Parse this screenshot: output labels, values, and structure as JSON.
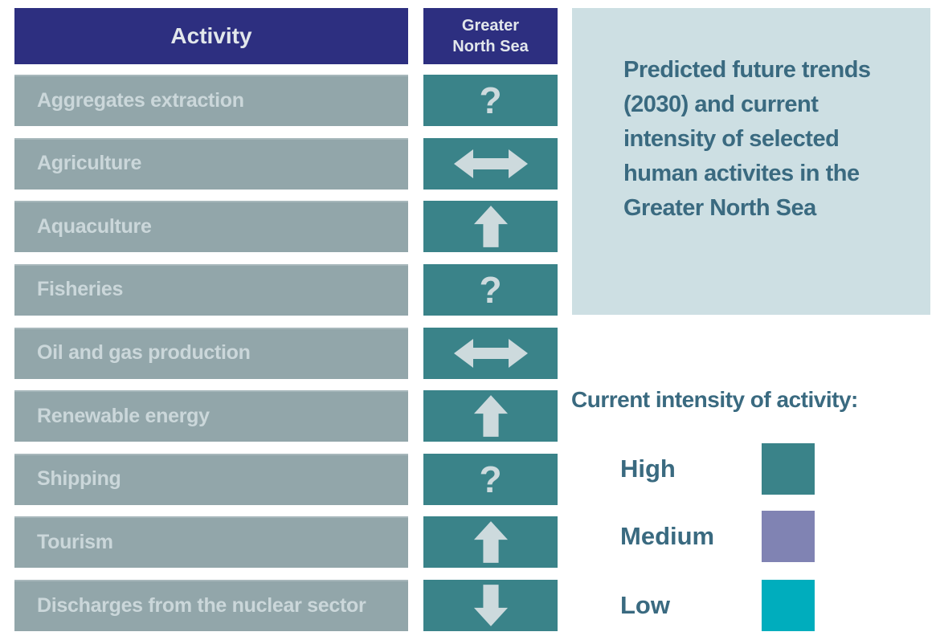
{
  "chart_data": {
    "type": "table",
    "title": "Predicted future trends (2030) and current intensity of selected human activites in the Greater North Sea",
    "columns": [
      "Activity",
      "Greater North Sea"
    ],
    "rows": [
      {
        "activity": "Aggregates extraction",
        "trend_2030": "uncertain",
        "symbol": "?",
        "current_intensity": "High"
      },
      {
        "activity": "Agriculture",
        "trend_2030": "stable",
        "symbol": "left-right-arrow",
        "current_intensity": "High"
      },
      {
        "activity": "Aquaculture",
        "trend_2030": "increase",
        "symbol": "up-arrow",
        "current_intensity": "High"
      },
      {
        "activity": "Fisheries",
        "trend_2030": "uncertain",
        "symbol": "?",
        "current_intensity": "High"
      },
      {
        "activity": "Oil and gas production",
        "trend_2030": "stable",
        "symbol": "left-right-arrow",
        "current_intensity": "High"
      },
      {
        "activity": "Renewable energy",
        "trend_2030": "increase",
        "symbol": "up-arrow",
        "current_intensity": "High"
      },
      {
        "activity": "Shipping",
        "trend_2030": "uncertain",
        "symbol": "?",
        "current_intensity": "High"
      },
      {
        "activity": "Tourism",
        "trend_2030": "increase",
        "symbol": "up-arrow",
        "current_intensity": "High"
      },
      {
        "activity": "Discharges from the nuclear sector",
        "trend_2030": "decrease",
        "symbol": "down-arrow",
        "current_intensity": "High"
      }
    ],
    "legend": {
      "heading": "Current intensity of activity:",
      "items": [
        {
          "label": "High",
          "color": "#3A8389"
        },
        {
          "label": "Medium",
          "color": "#8083B3"
        },
        {
          "label": "Low",
          "color": "#00ADBD"
        }
      ]
    },
    "layout_hints": {
      "legend_position": "bottom-right",
      "grid": false
    }
  }
}
